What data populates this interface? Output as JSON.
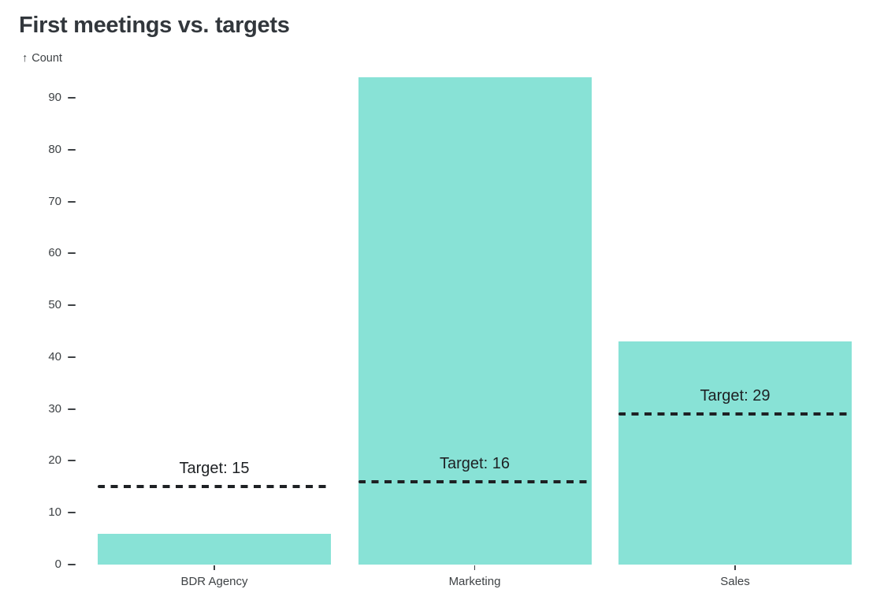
{
  "chart_data": {
    "type": "bar",
    "title": "First meetings vs. targets",
    "ylabel": "Count",
    "y_axis_arrow": "↑",
    "xlabel": "",
    "categories": [
      "BDR Agency",
      "Marketing",
      "Sales"
    ],
    "values": [
      6,
      94,
      43
    ],
    "targets": [
      {
        "category": "BDR Agency",
        "value": 15,
        "label": "Target: 15"
      },
      {
        "category": "Marketing",
        "value": 16,
        "label": "Target: 16"
      },
      {
        "category": "Sales",
        "value": 29,
        "label": "Target: 29"
      }
    ],
    "yticks": [
      0,
      10,
      20,
      30,
      40,
      50,
      60,
      70,
      80,
      90
    ],
    "ylim": [
      0,
      94
    ],
    "grid": false,
    "legend": false,
    "colors": {
      "bar_fill": "#88E2D6",
      "target_line": "#1E2124",
      "title_text": "#32373C",
      "axis_text": "#3E4245"
    }
  }
}
